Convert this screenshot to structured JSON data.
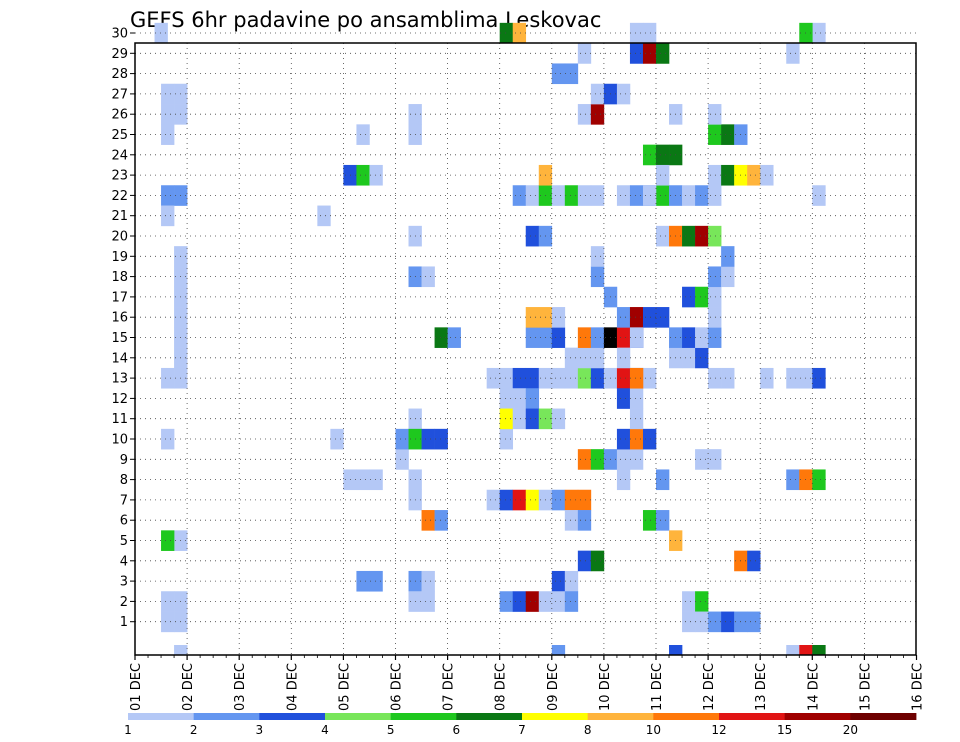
{
  "chart_data": {
    "type": "heatmap",
    "title": "GEFS 6hr padavine po ansamblima Leskovac",
    "xlabel": "",
    "ylabel": "",
    "x_tick_labels": [
      "01 DEC",
      "02 DEC",
      "03 DEC",
      "04 DEC",
      "05 DEC",
      "06 DEC",
      "07 DEC",
      "08 DEC",
      "09 DEC",
      "10 DEC",
      "11 DEC",
      "12 DEC",
      "13 DEC",
      "14 DEC",
      "15 DEC",
      "16 DEC"
    ],
    "y_tick_labels": [
      "1",
      "2",
      "3",
      "4",
      "5",
      "6",
      "7",
      "8",
      "9",
      "10",
      "11",
      "12",
      "13",
      "14",
      "15",
      "16",
      "17",
      "18",
      "19",
      "20",
      "21",
      "22",
      "23",
      "24",
      "25",
      "26",
      "27",
      "28",
      "29",
      "30"
    ],
    "grid": true,
    "colorbar": {
      "position": "bottom",
      "colors": [
        "#b4c8f6",
        "#6496f0",
        "#2050dc",
        "#78e65a",
        "#1ec81e",
        "#0a7814",
        "#ffff00",
        "#ffb43c",
        "#ff780a",
        "#e11414",
        "#a00000",
        "#6e0000"
      ],
      "tick_labels": [
        "1",
        "2",
        "3",
        "4",
        "5",
        "6",
        "7",
        "8",
        "10",
        "12",
        "15",
        "20"
      ]
    },
    "columns_note": "6-hourly steps: col 0 = 01 DEC 00Z, 4 cols per day",
    "cells": [
      [
        1.5,
        30,
        1
      ],
      [
        3,
        1,
        1
      ],
      [
        2,
        1,
        1
      ],
      [
        3,
        2,
        1
      ],
      [
        2,
        2,
        1
      ],
      [
        3,
        5,
        1
      ],
      [
        2,
        5,
        5
      ],
      [
        2,
        10,
        1
      ],
      [
        2,
        13,
        1
      ],
      [
        3,
        13,
        1
      ],
      [
        3,
        14,
        1
      ],
      [
        3,
        15,
        1
      ],
      [
        3,
        16,
        1
      ],
      [
        3,
        17,
        1
      ],
      [
        3,
        18,
        1
      ],
      [
        3,
        19,
        1
      ],
      [
        2,
        22,
        2
      ],
      [
        3,
        22,
        2
      ],
      [
        2,
        21,
        1
      ],
      [
        2,
        25,
        1
      ],
      [
        2,
        26,
        1
      ],
      [
        3,
        26,
        1
      ],
      [
        2,
        27,
        1
      ],
      [
        3,
        27,
        1
      ],
      [
        14,
        21,
        1
      ],
      [
        15,
        10,
        1
      ],
      [
        16,
        23,
        3
      ],
      [
        17,
        23,
        5
      ],
      [
        18,
        23,
        1
      ],
      [
        17,
        25,
        1
      ],
      [
        21,
        25,
        1
      ],
      [
        21,
        26,
        1
      ],
      [
        21,
        20,
        1
      ],
      [
        21,
        18,
        2
      ],
      [
        22,
        18,
        1
      ],
      [
        21,
        11,
        1
      ],
      [
        20,
        9,
        1
      ],
      [
        20,
        10,
        2
      ],
      [
        21,
        10,
        5
      ],
      [
        22,
        10,
        3
      ],
      [
        23,
        10,
        3
      ],
      [
        16,
        8,
        1
      ],
      [
        17,
        8,
        1
      ],
      [
        18,
        8,
        1
      ],
      [
        21,
        8,
        1
      ],
      [
        21,
        7,
        1
      ],
      [
        22,
        6,
        9
      ],
      [
        23,
        6,
        2
      ],
      [
        21,
        3,
        2
      ],
      [
        22,
        3,
        1
      ],
      [
        17,
        3,
        2
      ],
      [
        18,
        3,
        2
      ],
      [
        21,
        2,
        1
      ],
      [
        22,
        2,
        1
      ],
      [
        23,
        15,
        6
      ],
      [
        24,
        15,
        2
      ],
      [
        28,
        10,
        1
      ],
      [
        27,
        13,
        1
      ],
      [
        28,
        13,
        1
      ],
      [
        29,
        13,
        3
      ],
      [
        30,
        13,
        3
      ],
      [
        28,
        12,
        1
      ],
      [
        29,
        12,
        1
      ],
      [
        30,
        12,
        2
      ],
      [
        27,
        7,
        1
      ],
      [
        28,
        7,
        3
      ],
      [
        29,
        7,
        10
      ],
      [
        30,
        7,
        7
      ],
      [
        31,
        7,
        1
      ],
      [
        32,
        7,
        2
      ],
      [
        33,
        7,
        9
      ],
      [
        34,
        7,
        9
      ],
      [
        33,
        6,
        1
      ],
      [
        34,
        6,
        2
      ],
      [
        28,
        11,
        7
      ],
      [
        29,
        11,
        1
      ],
      [
        30,
        11,
        3
      ],
      [
        31,
        11,
        4
      ],
      [
        32,
        11,
        1
      ],
      [
        31,
        13,
        1
      ],
      [
        32,
        13,
        1
      ],
      [
        33,
        13,
        1
      ],
      [
        34,
        13,
        4
      ],
      [
        35,
        13,
        3
      ],
      [
        36,
        13,
        1
      ],
      [
        37,
        13,
        10
      ],
      [
        38,
        13,
        3
      ],
      [
        39,
        13,
        1
      ],
      [
        33,
        14,
        1
      ],
      [
        34,
        14,
        1
      ],
      [
        35,
        14,
        1
      ],
      [
        30,
        15,
        2
      ],
      [
        31,
        15,
        2
      ],
      [
        32,
        15,
        3
      ],
      [
        34,
        15,
        9
      ],
      [
        35,
        15,
        2
      ],
      [
        36,
        15,
        13
      ],
      [
        37,
        15,
        10
      ],
      [
        38,
        15,
        3
      ],
      [
        30,
        16,
        8
      ],
      [
        31,
        16,
        8
      ],
      [
        32,
        16,
        1
      ],
      [
        29,
        22,
        2
      ],
      [
        30,
        22,
        1
      ],
      [
        31,
        22,
        5
      ],
      [
        32,
        22,
        1
      ],
      [
        33,
        22,
        5
      ],
      [
        34,
        22,
        1
      ],
      [
        35,
        22,
        1
      ],
      [
        37,
        22,
        1
      ],
      [
        38,
        22,
        2
      ],
      [
        39,
        22,
        2
      ],
      [
        40,
        22,
        5
      ],
      [
        31,
        23,
        8
      ],
      [
        30,
        20,
        3
      ],
      [
        31,
        20,
        2
      ],
      [
        32,
        3,
        3
      ],
      [
        33,
        3,
        1
      ],
      [
        32,
        28,
        2
      ],
      [
        33,
        28,
        2
      ],
      [
        34,
        29,
        1
      ],
      [
        34,
        26,
        1
      ],
      [
        35,
        26,
        11
      ],
      [
        35,
        27,
        1
      ],
      [
        36,
        27,
        3
      ],
      [
        37,
        27,
        1
      ],
      [
        38,
        29,
        3
      ],
      [
        39,
        29,
        11
      ],
      [
        40,
        29,
        6
      ],
      [
        28,
        30,
        6
      ],
      [
        29,
        30,
        8
      ],
      [
        38,
        30,
        1
      ],
      [
        39,
        30,
        1
      ],
      [
        28,
        2,
        2
      ],
      [
        29,
        2,
        3
      ],
      [
        30,
        2,
        11
      ],
      [
        31,
        2,
        1
      ],
      [
        32,
        2,
        1
      ],
      [
        33,
        2,
        2
      ],
      [
        34,
        9,
        9
      ],
      [
        35,
        9,
        5
      ],
      [
        36,
        9,
        2
      ],
      [
        37,
        9,
        1
      ],
      [
        38,
        9,
        1
      ],
      [
        35,
        18,
        2
      ],
      [
        35,
        19,
        1
      ],
      [
        36,
        17,
        2
      ],
      [
        34,
        4,
        3
      ],
      [
        35,
        4,
        6
      ],
      [
        37,
        10,
        3
      ],
      [
        38,
        10,
        9
      ],
      [
        39,
        10,
        3
      ],
      [
        37,
        12,
        3
      ],
      [
        38,
        12,
        1
      ],
      [
        38,
        11,
        1
      ],
      [
        37,
        8,
        1
      ],
      [
        37,
        14,
        1
      ],
      [
        38,
        13,
        9
      ],
      [
        37,
        16,
        2
      ],
      [
        38,
        16,
        11
      ],
      [
        39,
        16,
        3
      ],
      [
        40,
        16,
        3
      ],
      [
        38,
        15,
        1
      ],
      [
        39,
        24,
        5
      ],
      [
        40,
        24,
        6
      ],
      [
        41,
        24,
        6
      ],
      [
        40,
        20,
        1
      ],
      [
        41,
        20,
        9
      ],
      [
        42,
        20,
        6
      ],
      [
        43,
        20,
        11
      ],
      [
        44,
        20,
        4
      ],
      [
        40,
        23,
        1
      ],
      [
        39,
        22,
        1
      ],
      [
        41,
        22,
        2
      ],
      [
        40,
        8,
        2
      ],
      [
        39,
        6,
        5
      ],
      [
        40,
        6,
        2
      ],
      [
        41,
        5,
        8
      ],
      [
        41,
        26,
        1
      ],
      [
        41,
        14,
        1
      ],
      [
        42,
        14,
        1
      ],
      [
        43,
        14,
        3
      ],
      [
        41,
        15,
        2
      ],
      [
        42,
        15,
        3
      ],
      [
        43,
        15,
        1
      ],
      [
        44,
        15,
        2
      ],
      [
        44,
        16,
        1
      ],
      [
        42,
        17,
        3
      ],
      [
        43,
        17,
        5
      ],
      [
        44,
        17,
        1
      ],
      [
        42,
        22,
        1
      ],
      [
        43,
        22,
        2
      ],
      [
        44,
        22,
        1
      ],
      [
        44,
        23,
        1
      ],
      [
        45,
        23,
        6
      ],
      [
        46,
        23,
        7
      ],
      [
        47,
        23,
        8
      ],
      [
        48,
        23,
        1
      ],
      [
        44,
        25,
        5
      ],
      [
        45,
        25,
        6
      ],
      [
        46,
        25,
        2
      ],
      [
        44,
        26,
        1
      ],
      [
        44,
        18,
        2
      ],
      [
        45,
        18,
        1
      ],
      [
        45,
        19,
        2
      ],
      [
        42,
        2,
        1
      ],
      [
        43,
        2,
        5
      ],
      [
        42,
        1,
        1
      ],
      [
        43,
        1,
        1
      ],
      [
        44,
        1,
        2
      ],
      [
        45,
        1,
        3
      ],
      [
        46,
        1,
        2
      ],
      [
        47,
        1,
        2
      ],
      [
        46,
        4,
        9
      ],
      [
        47,
        4,
        3
      ],
      [
        44,
        13,
        1
      ],
      [
        45,
        13,
        1
      ],
      [
        43,
        9,
        1
      ],
      [
        44,
        9,
        1
      ],
      [
        48,
        13,
        1
      ],
      [
        50,
        13,
        1
      ],
      [
        51,
        13,
        1
      ],
      [
        52,
        13,
        3
      ],
      [
        52,
        22,
        1
      ],
      [
        52,
        30,
        1
      ],
      [
        51,
        30,
        5
      ],
      [
        50,
        29,
        1
      ],
      [
        50,
        8,
        2
      ],
      [
        51,
        8,
        9
      ],
      [
        52,
        8,
        5
      ]
    ],
    "bottom_marks": [
      [
        3,
        1
      ],
      [
        32,
        2
      ],
      [
        41,
        3
      ],
      [
        50,
        1
      ],
      [
        51,
        10
      ],
      [
        52,
        6
      ]
    ]
  }
}
